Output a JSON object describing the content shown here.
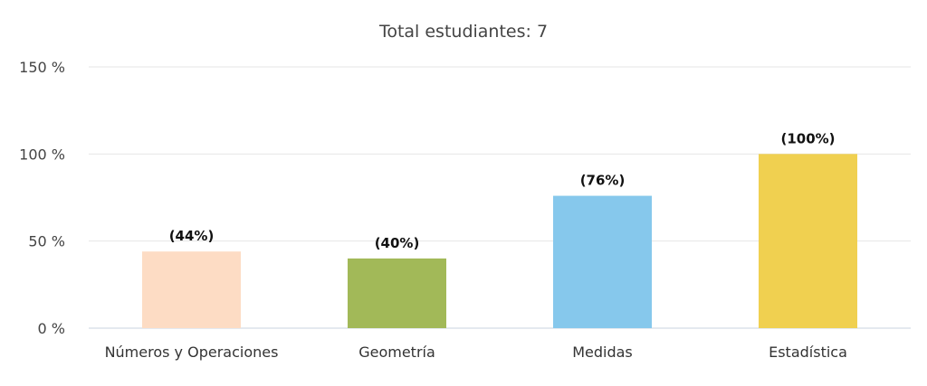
{
  "chart_data": {
    "type": "bar",
    "title": "Total estudiantes: 7",
    "categories": [
      "Números y Operaciones",
      "Geometría",
      "Medidas",
      "Estadística"
    ],
    "values": [
      44,
      40,
      76,
      100
    ],
    "data_labels": [
      "(44%)",
      "(40%)",
      "(76%)",
      "(100%)"
    ],
    "colors": [
      "#fddcc4",
      "#a2b958",
      "#86c8ec",
      "#f0d050"
    ],
    "ylim": [
      0,
      150
    ],
    "yticks": [
      0,
      50,
      100,
      150
    ],
    "ytick_labels": [
      "0 %",
      "50 %",
      "100 %",
      "150 %"
    ],
    "xlabel": "",
    "ylabel": "",
    "grid": true,
    "legend": "none"
  }
}
